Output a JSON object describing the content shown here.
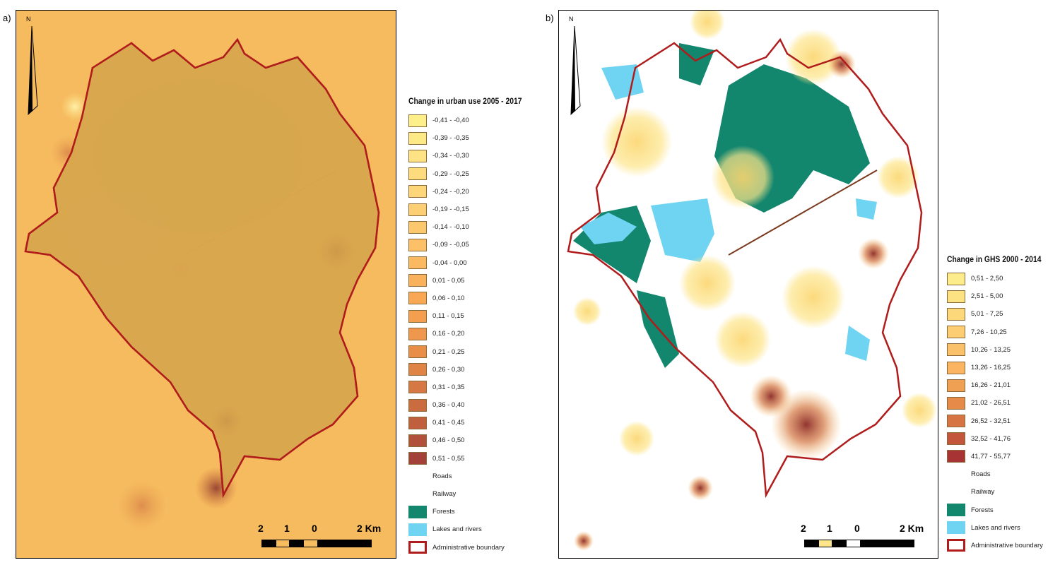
{
  "panel_a": {
    "label": "a)",
    "north": "N",
    "legend_title": "Change in urban use 2005 - 2017",
    "classes": [
      {
        "label": "-0,41 - -0,40",
        "color": "#fdf08a"
      },
      {
        "label": "-0,39 - -0,35",
        "color": "#fdea86"
      },
      {
        "label": "-0,34 - -0,30",
        "color": "#fde383"
      },
      {
        "label": "-0,29 - -0,25",
        "color": "#fddc7e"
      },
      {
        "label": "-0,24 - -0,20",
        "color": "#fdd67a"
      },
      {
        "label": "-0,19 - -0,15",
        "color": "#fdcf74"
      },
      {
        "label": "-0,14 - -0,10",
        "color": "#fcc86e"
      },
      {
        "label": "-0,09 - -0,05",
        "color": "#fcc068"
      },
      {
        "label": "-0,04 - 0,00",
        "color": "#fbb962"
      },
      {
        "label": "0,01 - 0,05",
        "color": "#fab15c"
      },
      {
        "label": "0,06 - 0,10",
        "color": "#f8a855"
      },
      {
        "label": "0,11 - 0,15",
        "color": "#f49f50"
      },
      {
        "label": "0,16 - 0,20",
        "color": "#ef974c"
      },
      {
        "label": "0,21 - 0,25",
        "color": "#e98e49"
      },
      {
        "label": "0,26 - 0,30",
        "color": "#e08446"
      },
      {
        "label": "0,31 - 0,35",
        "color": "#d67843"
      },
      {
        "label": "0,36 - 0,40",
        "color": "#cb6c40"
      },
      {
        "label": "0,41 - 0,45",
        "color": "#c05f3d"
      },
      {
        "label": "0,46 - 0,50",
        "color": "#b2513b"
      },
      {
        "label": "0,51 - 0,55",
        "color": "#a34039"
      }
    ],
    "other": [
      {
        "label": "Roads",
        "type": "none"
      },
      {
        "label": "Railway",
        "type": "none"
      },
      {
        "label": "Forests",
        "type": "fill",
        "color": "#13866e"
      },
      {
        "label": "Lakes and rivers",
        "type": "fill",
        "color": "#6fd3f2"
      },
      {
        "label": "Administrative boundary",
        "type": "admin"
      }
    ],
    "scale": {
      "left": "2",
      "mid": "1",
      "zero": "0",
      "right": "2 Km"
    }
  },
  "panel_b": {
    "label": "b)",
    "north": "N",
    "legend_title": "Change in GHS 2000 - 2014",
    "classes": [
      {
        "label": "0,51 - 2,50",
        "color": "#fdec8c"
      },
      {
        "label": "2,51 - 5,00",
        "color": "#fde283"
      },
      {
        "label": "5,01 - 7,25",
        "color": "#fdd87b"
      },
      {
        "label": "7,26 - 10,25",
        "color": "#fccd72"
      },
      {
        "label": "10,26 - 13,25",
        "color": "#fbc16a"
      },
      {
        "label": "13,26 - 16,25",
        "color": "#fab462"
      },
      {
        "label": "16,26 - 21,01",
        "color": "#f0a052"
      },
      {
        "label": "21,02 - 26,51",
        "color": "#e58a49"
      },
      {
        "label": "26,52 - 32,51",
        "color": "#d77443"
      },
      {
        "label": "32,52 - 41,76",
        "color": "#c2553c"
      },
      {
        "label": "41,77 - 55,77",
        "color": "#a83335"
      }
    ],
    "other": [
      {
        "label": "Roads",
        "type": "none"
      },
      {
        "label": "Railway",
        "type": "none"
      },
      {
        "label": "Forests",
        "type": "fill",
        "color": "#13866e"
      },
      {
        "label": "Lakes and rivers",
        "type": "fill",
        "color": "#6fd3f2"
      },
      {
        "label": "Administrative boundary",
        "type": "admin"
      }
    ],
    "scale": {
      "left": "2",
      "mid": "1",
      "zero": "0",
      "right": "2 Km"
    }
  },
  "colors": {
    "boundary": "#b01c1c",
    "forest": "#13866e",
    "water": "#6fd3f2",
    "base_a": "#f6bb5e"
  }
}
